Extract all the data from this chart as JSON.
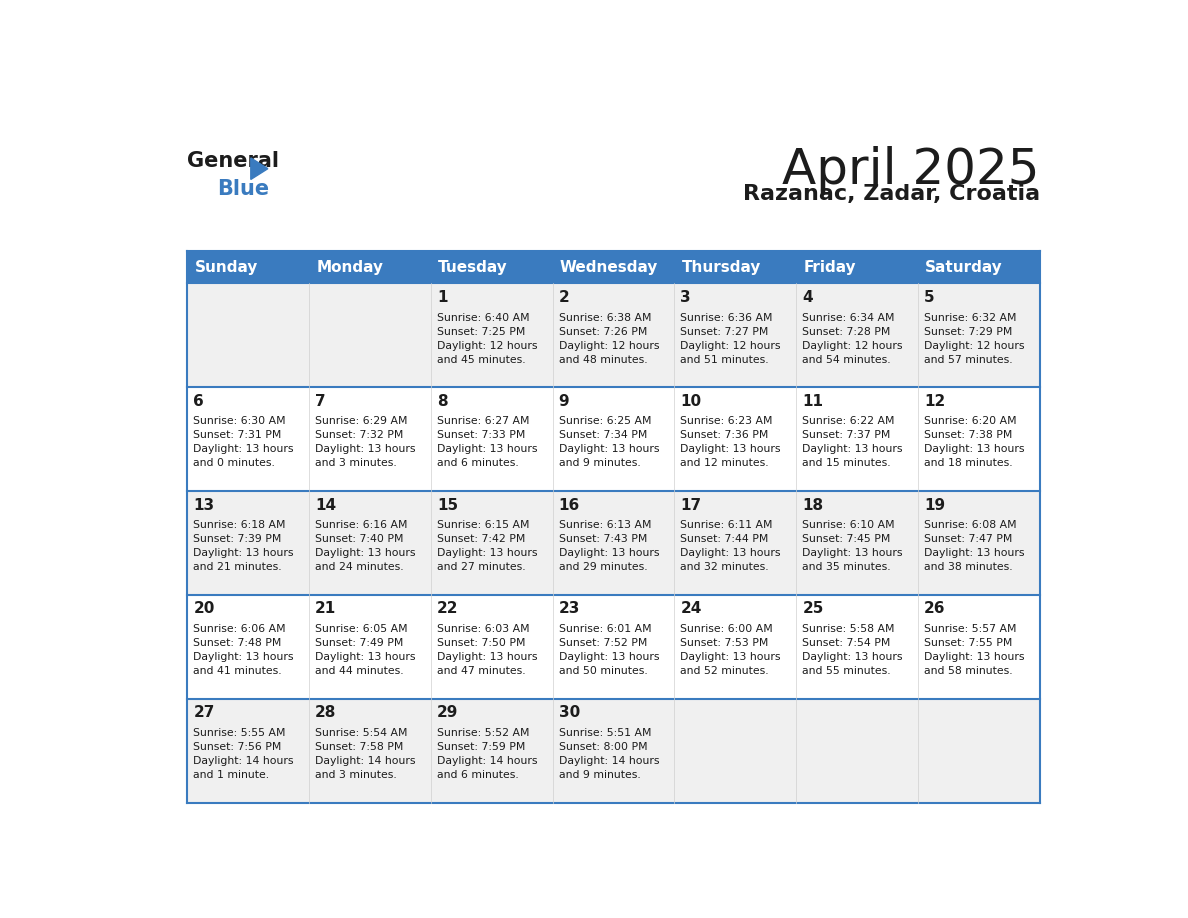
{
  "title": "April 2025",
  "subtitle": "Razanac, Zadar, Croatia",
  "header_bg": "#3a7bbf",
  "header_text": "#ffffff",
  "row_bg_odd": "#f0f0f0",
  "row_bg_even": "#ffffff",
  "separator_color": "#3a7bbf",
  "cell_line_color": "#cccccc",
  "day_names": [
    "Sunday",
    "Monday",
    "Tuesday",
    "Wednesday",
    "Thursday",
    "Friday",
    "Saturday"
  ],
  "weeks": [
    [
      {
        "day": "",
        "info": ""
      },
      {
        "day": "",
        "info": ""
      },
      {
        "day": "1",
        "info": "Sunrise: 6:40 AM\nSunset: 7:25 PM\nDaylight: 12 hours\nand 45 minutes."
      },
      {
        "day": "2",
        "info": "Sunrise: 6:38 AM\nSunset: 7:26 PM\nDaylight: 12 hours\nand 48 minutes."
      },
      {
        "day": "3",
        "info": "Sunrise: 6:36 AM\nSunset: 7:27 PM\nDaylight: 12 hours\nand 51 minutes."
      },
      {
        "day": "4",
        "info": "Sunrise: 6:34 AM\nSunset: 7:28 PM\nDaylight: 12 hours\nand 54 minutes."
      },
      {
        "day": "5",
        "info": "Sunrise: 6:32 AM\nSunset: 7:29 PM\nDaylight: 12 hours\nand 57 minutes."
      }
    ],
    [
      {
        "day": "6",
        "info": "Sunrise: 6:30 AM\nSunset: 7:31 PM\nDaylight: 13 hours\nand 0 minutes."
      },
      {
        "day": "7",
        "info": "Sunrise: 6:29 AM\nSunset: 7:32 PM\nDaylight: 13 hours\nand 3 minutes."
      },
      {
        "day": "8",
        "info": "Sunrise: 6:27 AM\nSunset: 7:33 PM\nDaylight: 13 hours\nand 6 minutes."
      },
      {
        "day": "9",
        "info": "Sunrise: 6:25 AM\nSunset: 7:34 PM\nDaylight: 13 hours\nand 9 minutes."
      },
      {
        "day": "10",
        "info": "Sunrise: 6:23 AM\nSunset: 7:36 PM\nDaylight: 13 hours\nand 12 minutes."
      },
      {
        "day": "11",
        "info": "Sunrise: 6:22 AM\nSunset: 7:37 PM\nDaylight: 13 hours\nand 15 minutes."
      },
      {
        "day": "12",
        "info": "Sunrise: 6:20 AM\nSunset: 7:38 PM\nDaylight: 13 hours\nand 18 minutes."
      }
    ],
    [
      {
        "day": "13",
        "info": "Sunrise: 6:18 AM\nSunset: 7:39 PM\nDaylight: 13 hours\nand 21 minutes."
      },
      {
        "day": "14",
        "info": "Sunrise: 6:16 AM\nSunset: 7:40 PM\nDaylight: 13 hours\nand 24 minutes."
      },
      {
        "day": "15",
        "info": "Sunrise: 6:15 AM\nSunset: 7:42 PM\nDaylight: 13 hours\nand 27 minutes."
      },
      {
        "day": "16",
        "info": "Sunrise: 6:13 AM\nSunset: 7:43 PM\nDaylight: 13 hours\nand 29 minutes."
      },
      {
        "day": "17",
        "info": "Sunrise: 6:11 AM\nSunset: 7:44 PM\nDaylight: 13 hours\nand 32 minutes."
      },
      {
        "day": "18",
        "info": "Sunrise: 6:10 AM\nSunset: 7:45 PM\nDaylight: 13 hours\nand 35 minutes."
      },
      {
        "day": "19",
        "info": "Sunrise: 6:08 AM\nSunset: 7:47 PM\nDaylight: 13 hours\nand 38 minutes."
      }
    ],
    [
      {
        "day": "20",
        "info": "Sunrise: 6:06 AM\nSunset: 7:48 PM\nDaylight: 13 hours\nand 41 minutes."
      },
      {
        "day": "21",
        "info": "Sunrise: 6:05 AM\nSunset: 7:49 PM\nDaylight: 13 hours\nand 44 minutes."
      },
      {
        "day": "22",
        "info": "Sunrise: 6:03 AM\nSunset: 7:50 PM\nDaylight: 13 hours\nand 47 minutes."
      },
      {
        "day": "23",
        "info": "Sunrise: 6:01 AM\nSunset: 7:52 PM\nDaylight: 13 hours\nand 50 minutes."
      },
      {
        "day": "24",
        "info": "Sunrise: 6:00 AM\nSunset: 7:53 PM\nDaylight: 13 hours\nand 52 minutes."
      },
      {
        "day": "25",
        "info": "Sunrise: 5:58 AM\nSunset: 7:54 PM\nDaylight: 13 hours\nand 55 minutes."
      },
      {
        "day": "26",
        "info": "Sunrise: 5:57 AM\nSunset: 7:55 PM\nDaylight: 13 hours\nand 58 minutes."
      }
    ],
    [
      {
        "day": "27",
        "info": "Sunrise: 5:55 AM\nSunset: 7:56 PM\nDaylight: 14 hours\nand 1 minute."
      },
      {
        "day": "28",
        "info": "Sunrise: 5:54 AM\nSunset: 7:58 PM\nDaylight: 14 hours\nand 3 minutes."
      },
      {
        "day": "29",
        "info": "Sunrise: 5:52 AM\nSunset: 7:59 PM\nDaylight: 14 hours\nand 6 minutes."
      },
      {
        "day": "30",
        "info": "Sunrise: 5:51 AM\nSunset: 8:00 PM\nDaylight: 14 hours\nand 9 minutes."
      },
      {
        "day": "",
        "info": ""
      },
      {
        "day": "",
        "info": ""
      },
      {
        "day": "",
        "info": ""
      }
    ]
  ]
}
